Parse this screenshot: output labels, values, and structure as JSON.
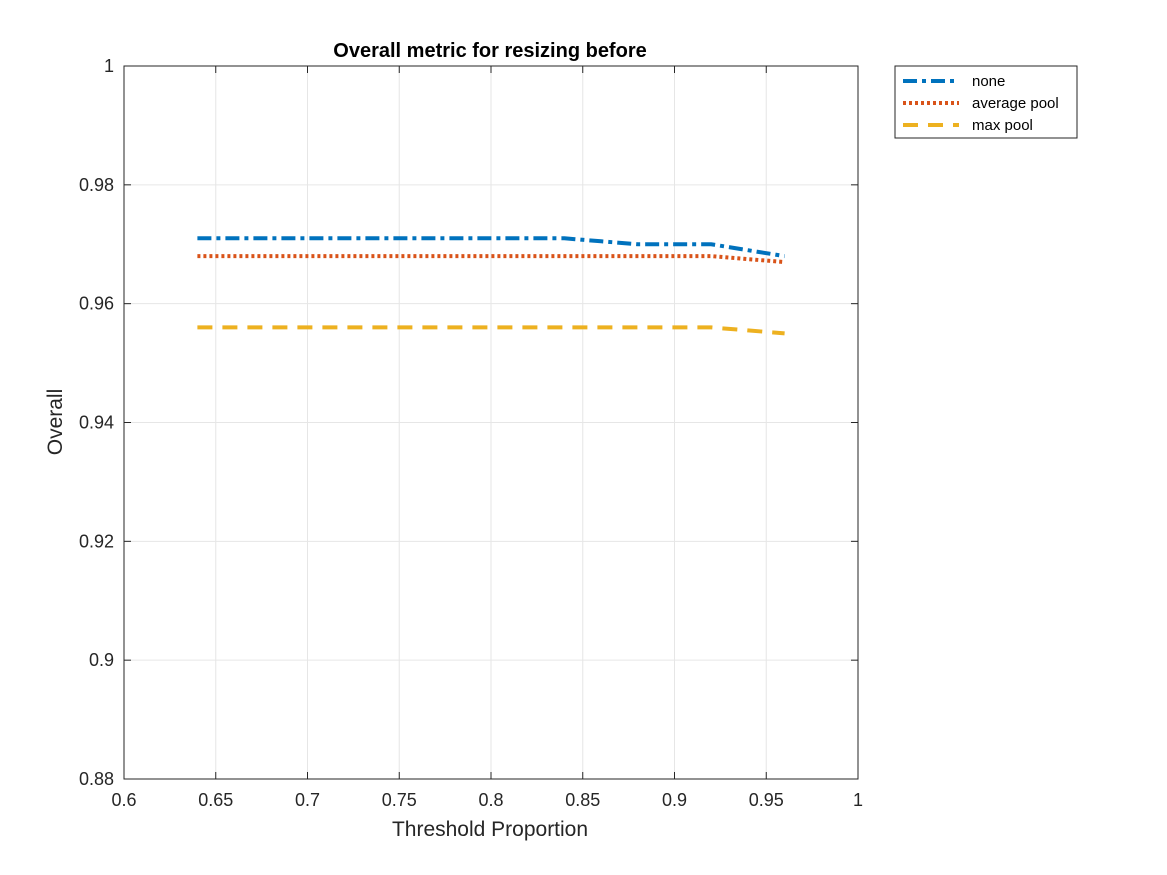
{
  "chart_data": {
    "type": "line",
    "title": "Overall metric for resizing before",
    "xlabel": "Threshold Proportion",
    "ylabel": "Overall",
    "xlim": [
      0.6,
      1
    ],
    "ylim": [
      0.88,
      1
    ],
    "xticks": [
      "0.6",
      "0.65",
      "0.7",
      "0.75",
      "0.8",
      "0.85",
      "0.9",
      "0.95",
      "1"
    ],
    "yticks": [
      "0.88",
      "0.9",
      "0.92",
      "0.94",
      "0.96",
      "0.98",
      "1"
    ],
    "grid": true,
    "legend_position": "outside-top-right",
    "x": [
      0.64,
      0.66,
      0.68,
      0.7,
      0.72,
      0.74,
      0.76,
      0.78,
      0.8,
      0.82,
      0.84,
      0.86,
      0.88,
      0.9,
      0.92,
      0.94,
      0.96
    ],
    "series": [
      {
        "name": "none",
        "color": "#0072BD",
        "dash": "dash-dot",
        "values": [
          0.971,
          0.971,
          0.971,
          0.971,
          0.971,
          0.971,
          0.971,
          0.971,
          0.971,
          0.971,
          0.971,
          0.9705,
          0.97,
          0.97,
          0.97,
          0.969,
          0.968
        ]
      },
      {
        "name": "average pool",
        "color": "#D95319",
        "dash": "dotted",
        "values": [
          0.968,
          0.968,
          0.968,
          0.968,
          0.968,
          0.968,
          0.968,
          0.968,
          0.968,
          0.968,
          0.968,
          0.968,
          0.968,
          0.968,
          0.968,
          0.9675,
          0.967
        ]
      },
      {
        "name": "max pool",
        "color": "#EDB120",
        "dash": "dashed",
        "values": [
          0.956,
          0.956,
          0.956,
          0.956,
          0.956,
          0.956,
          0.956,
          0.956,
          0.956,
          0.956,
          0.956,
          0.956,
          0.956,
          0.956,
          0.956,
          0.9555,
          0.955
        ]
      }
    ]
  }
}
